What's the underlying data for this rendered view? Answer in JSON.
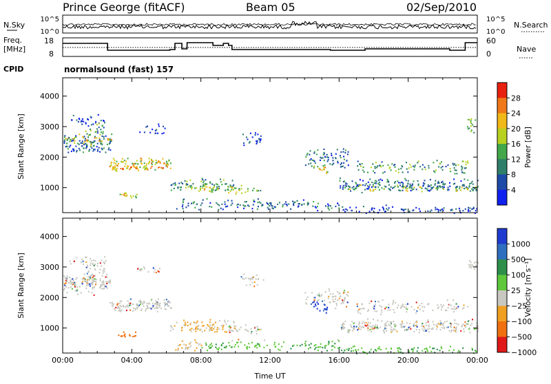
{
  "header": {
    "station": "Prince George (fitACF)",
    "beam": "Beam 05",
    "date": "02/Sep/2010"
  },
  "top_panels": {
    "nsky_label": "N.Sky",
    "nsearch_label": "N.Search",
    "nsky_ticks": [
      "10^5",
      "10^0"
    ],
    "nsearch_ticks": [
      "10^5",
      "10^0"
    ],
    "freq_label_1": "Freq.",
    "freq_label_2": "[MHz]",
    "freq_ticks": [
      "18",
      "8"
    ],
    "nave_label": "Nave",
    "nave_ticks": [
      "60",
      "0"
    ],
    "cpid_label": "CPID",
    "cpid_value": "normalsound (fast) 157"
  },
  "chart_data": [
    {
      "type": "heatmap",
      "quantity": "Power",
      "ylabel": "Slant Range [km]",
      "ylim": [
        180,
        4600
      ],
      "yticks": [
        "1000",
        "2000",
        "3000",
        "4000"
      ],
      "xlim": [
        0,
        24
      ],
      "colorbar_label": "Power [dB]",
      "colorbar_ticks": [
        "4",
        "8",
        "12",
        "16",
        "20",
        "24",
        "28"
      ],
      "colorbar_range": [
        0,
        32
      ],
      "colors": [
        "#1020ee",
        "#1e4aa8",
        "#2f7f6a",
        "#42a84a",
        "#b8d020",
        "#f0b818",
        "#f07818",
        "#e82010"
      ]
    },
    {
      "type": "heatmap",
      "quantity": "Velocity",
      "ylabel": "Slant Range [km]",
      "ylim": [
        180,
        4600
      ],
      "yticks": [
        "1000",
        "2000",
        "3000",
        "4000"
      ],
      "xlim": [
        0,
        24
      ],
      "xlabel": "Time UT",
      "xticks": [
        "00:00",
        "04:00",
        "08:00",
        "12:00",
        "16:00",
        "20:00",
        "00:00"
      ],
      "colorbar_label": "Velocity [m s⁻¹]",
      "colorbar_ticks": [
        "1000",
        "500",
        "100",
        "25",
        "−25",
        "−100",
        "−500",
        "−1000"
      ],
      "colors": [
        "#1f3bd0",
        "#2f6fbf",
        "#2d8f4a",
        "#5ec83a",
        "#c8c8c0",
        "#f0a020",
        "#f07010",
        "#e01818"
      ]
    }
  ]
}
